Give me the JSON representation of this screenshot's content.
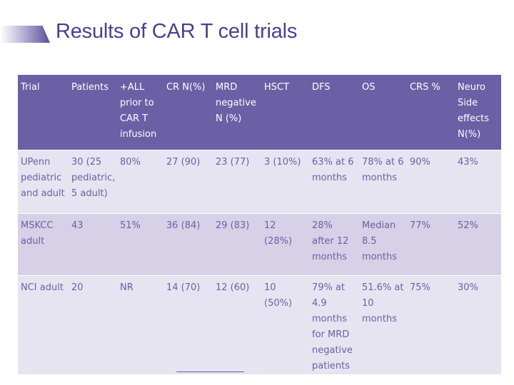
{
  "title": "Results of CAR T cell trials",
  "table": {
    "headers": [
      "Trial",
      "Patients",
      "+ALL prior to CAR T infusion",
      "CR N(%)",
      "MRD negative N (%)",
      "HSCT",
      "DFS",
      "OS",
      "CRS %",
      "Neuro Side effects N(%)"
    ],
    "rows": [
      [
        "UPenn pediatric and adult",
        "30 (25 pediatric, 5 adult)",
        "80%",
        "27 (90)",
        "23 (77)",
        "3 (10%)",
        "63% at 6 months",
        "78% at 6 months",
        "90%",
        "43%"
      ],
      [
        "MSKCC adult",
        "43",
        "51%",
        "36 (84)",
        "29 (83)",
        "12 (28%)",
        "28% after 12 months",
        "Median 8.5 months",
        "77%",
        "52%"
      ],
      [
        "NCI adult",
        "20",
        "NR",
        "14 (70)",
        "12 (60)",
        "10 (50%)",
        "79% at 4.9 months for MRD negative patients",
        "51.6% at 10 months",
        "75%",
        "30%"
      ]
    ]
  },
  "colors": {
    "title": "#4a3f91",
    "header_bg": "#6b5fa6",
    "row_light": "#e7e4f1",
    "row_mid": "#d6d1e7"
  }
}
